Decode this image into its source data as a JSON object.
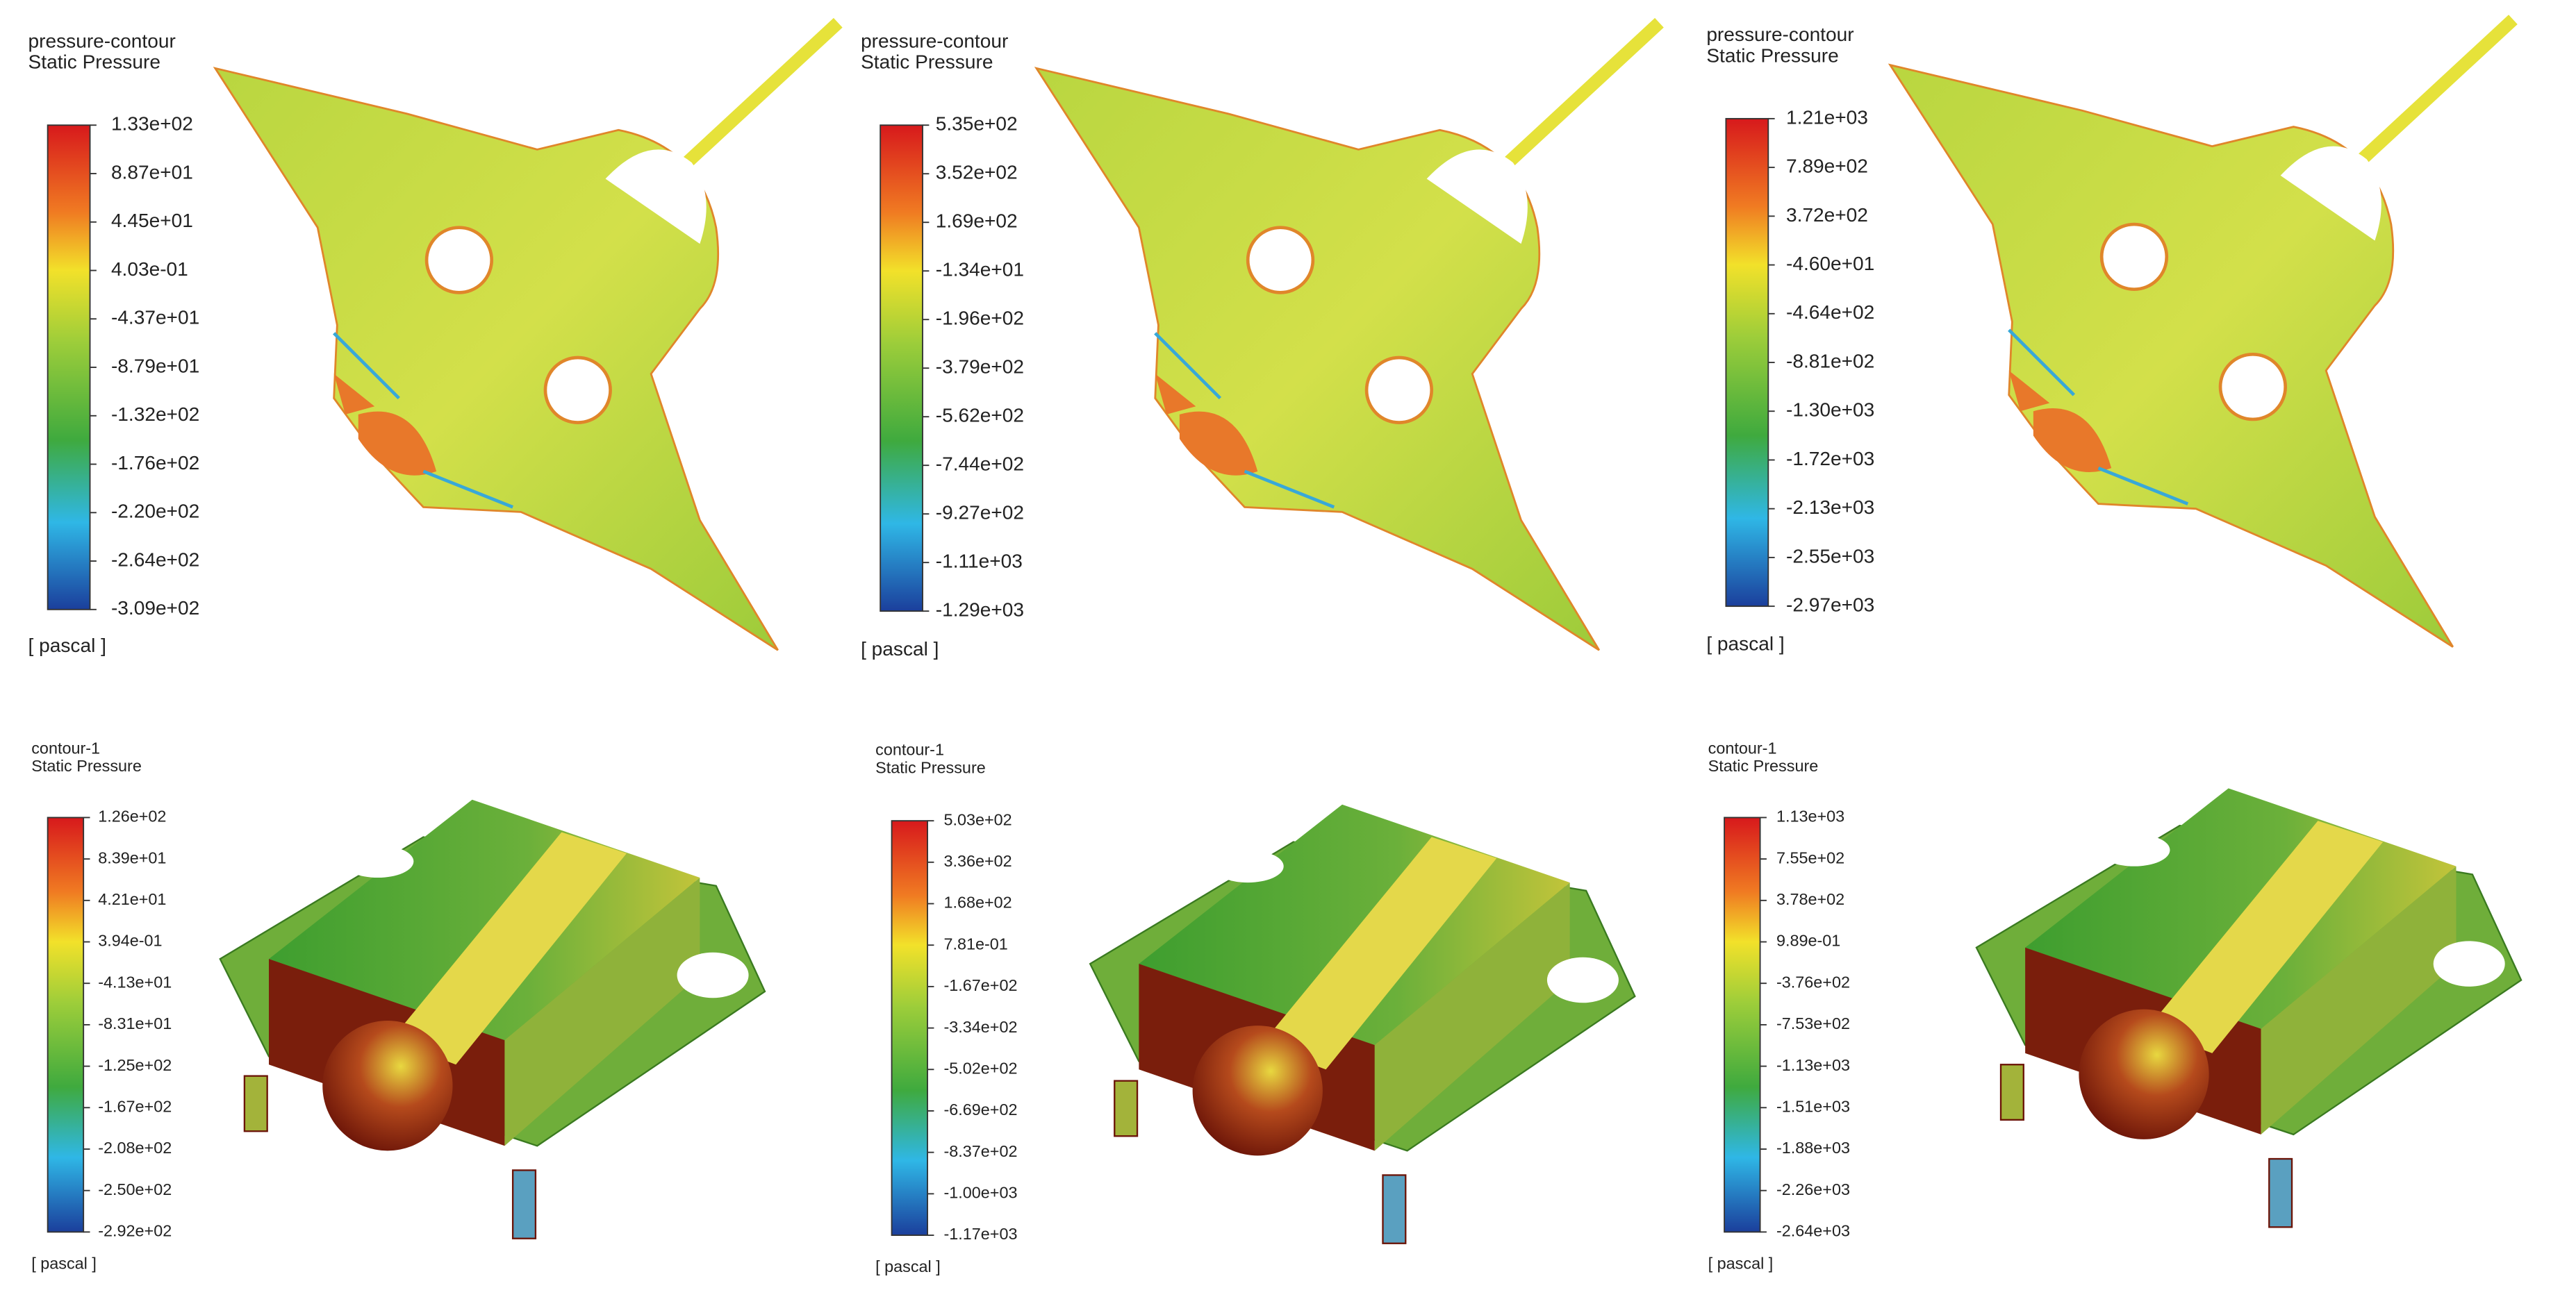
{
  "panels": [
    {
      "title": "pressure-contour",
      "subtitle": "Static Pressure",
      "labels": [
        "1.33e+02",
        "8.87e+01",
        "4.45e+01",
        "4.03e-01",
        "-4.37e+01",
        "-8.79e+01",
        "-1.32e+02",
        "-1.76e+02",
        "-2.20e+02",
        "-2.64e+02",
        "-3.09e+02"
      ],
      "unit": "[ pascal ]"
    },
    {
      "title": "pressure-contour",
      "subtitle": "Static Pressure",
      "labels": [
        "5.35e+02",
        "3.52e+02",
        "1.69e+02",
        "-1.34e+01",
        "-1.96e+02",
        "-3.79e+02",
        "-5.62e+02",
        "-7.44e+02",
        "-9.27e+02",
        "-1.11e+03",
        "-1.29e+03"
      ],
      "unit": "[ pascal ]"
    },
    {
      "title": "pressure-contour",
      "subtitle": "Static Pressure",
      "labels": [
        "1.21e+03",
        "7.89e+02",
        "3.72e+02",
        "-4.60e+01",
        "-4.64e+02",
        "-8.81e+02",
        "-1.30e+03",
        "-1.72e+03",
        "-2.13e+03",
        "-2.55e+03",
        "-2.97e+03"
      ],
      "unit": "[ pascal ]"
    },
    {
      "title": "contour-1",
      "subtitle": "Static Pressure",
      "labels": [
        "1.26e+02",
        "8.39e+01",
        "4.21e+01",
        "3.94e-01",
        "-4.13e+01",
        "-8.31e+01",
        "-1.25e+02",
        "-1.67e+02",
        "-2.08e+02",
        "-2.50e+02",
        "-2.92e+02"
      ],
      "unit": "[ pascal ]"
    },
    {
      "title": "contour-1",
      "subtitle": "Static Pressure",
      "labels": [
        "5.03e+02",
        "3.36e+02",
        "1.68e+02",
        "7.81e-01",
        "-1.67e+02",
        "-3.34e+02",
        "-5.02e+02",
        "-6.69e+02",
        "-8.37e+02",
        "-1.00e+03",
        "-1.17e+03"
      ],
      "unit": "[ pascal ]"
    },
    {
      "title": "contour-1",
      "subtitle": "Static Pressure",
      "labels": [
        "1.13e+03",
        "7.55e+02",
        "3.78e+02",
        "9.89e-01",
        "-3.76e+02",
        "-7.53e+02",
        "-1.13e+03",
        "-1.51e+03",
        "-1.88e+03",
        "-2.26e+03",
        "-2.64e+03"
      ],
      "unit": "[ pascal ]"
    }
  ]
}
